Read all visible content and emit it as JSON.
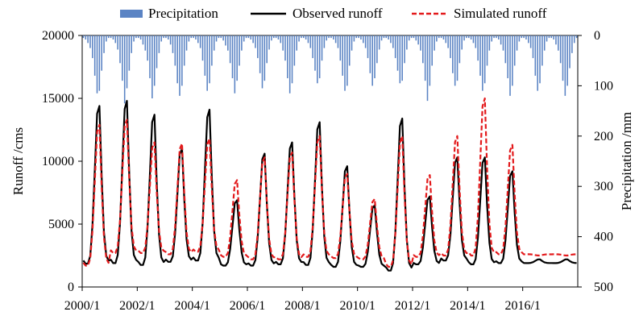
{
  "chart_data": {
    "type": "line",
    "title": "",
    "ylabel": "Runoff /cms",
    "y2label": "Precipitation /mm",
    "xlabel": "",
    "x_ticks": [
      "2000/1",
      "2002/1",
      "2004/1",
      "2006/1",
      "2008/1",
      "2010/1",
      "2012/1",
      "2014/1",
      "2016/1"
    ],
    "x_range": [
      "2000/1",
      "2017/12"
    ],
    "ylim": [
      0,
      20000
    ],
    "y_ticks": [
      0,
      5000,
      10000,
      15000,
      20000
    ],
    "y2lim": [
      0,
      500
    ],
    "y2_inverted": true,
    "y2_ticks": [
      0,
      100,
      200,
      300,
      400,
      500
    ],
    "legend_position": "top",
    "colors": {
      "precipitation": "#5b84c4",
      "observed": "#000000",
      "simulated": "#e31a1c"
    },
    "series": [
      {
        "name": "Precipitation",
        "kind": "bar",
        "axis": "right",
        "values": [
          5,
          8,
          15,
          25,
          45,
          80,
          115,
          110,
          70,
          35,
          12,
          5,
          5,
          8,
          15,
          28,
          55,
          90,
          135,
          105,
          70,
          35,
          12,
          5,
          5,
          8,
          18,
          30,
          50,
          85,
          125,
          100,
          65,
          35,
          12,
          5,
          5,
          8,
          18,
          35,
          60,
          95,
          120,
          100,
          60,
          30,
          12,
          5,
          5,
          8,
          15,
          25,
          50,
          80,
          110,
          95,
          60,
          30,
          12,
          5,
          5,
          10,
          20,
          30,
          55,
          85,
          115,
          90,
          60,
          30,
          12,
          5,
          5,
          8,
          15,
          25,
          45,
          75,
          105,
          90,
          55,
          28,
          10,
          5,
          5,
          8,
          15,
          30,
          50,
          85,
          115,
          95,
          60,
          30,
          12,
          5,
          5,
          8,
          15,
          25,
          45,
          70,
          95,
          85,
          50,
          25,
          10,
          5,
          5,
          8,
          15,
          25,
          50,
          80,
          110,
          100,
          60,
          30,
          12,
          5,
          5,
          8,
          15,
          25,
          45,
          75,
          100,
          85,
          55,
          28,
          10,
          5,
          5,
          8,
          15,
          25,
          45,
          70,
          95,
          90,
          55,
          28,
          10,
          5,
          5,
          10,
          18,
          30,
          55,
          90,
          130,
          100,
          60,
          30,
          12,
          5,
          5,
          8,
          15,
          25,
          45,
          75,
          100,
          90,
          55,
          28,
          10,
          5,
          5,
          8,
          15,
          25,
          50,
          80,
          110,
          95,
          60,
          30,
          12,
          5,
          5,
          8,
          18,
          30,
          55,
          85,
          120,
          100,
          60,
          30,
          12,
          5,
          5,
          8,
          15,
          25,
          45,
          80,
          110,
          95,
          60,
          30,
          12,
          5,
          5,
          8,
          18,
          30,
          55,
          90,
          120,
          100,
          65,
          35,
          15,
          5
        ]
      },
      {
        "name": "Observed runoff",
        "kind": "line",
        "axis": "left",
        "peaks": [
          14400,
          14800,
          13700,
          11000,
          14100,
          6900,
          10600,
          11500,
          13100,
          9600,
          6500,
          13400,
          7200,
          10300,
          10300,
          9200,
          2200,
          2200
        ],
        "baseflow": [
          1850,
          1900,
          1750,
          2000,
          2100,
          1700,
          1700,
          1800,
          1750,
          1600,
          1600,
          1300,
          1800,
          2100,
          1800,
          1900,
          1900,
          1900
        ]
      },
      {
        "name": "Simulated runoff",
        "kind": "line",
        "axis": "left",
        "style": "dashed",
        "peaks": [
          12900,
          13300,
          11500,
          11400,
          11800,
          8500,
          10300,
          10700,
          12000,
          9000,
          7000,
          12000,
          8900,
          12000,
          15000,
          11300,
          2500,
          2500
        ],
        "baseflow": [
          1700,
          2700,
          2700,
          2600,
          2800,
          2400,
          2200,
          2200,
          2400,
          2300,
          2200,
          1600,
          2400,
          2500,
          2500,
          2600,
          2600,
          2600
        ]
      }
    ]
  }
}
